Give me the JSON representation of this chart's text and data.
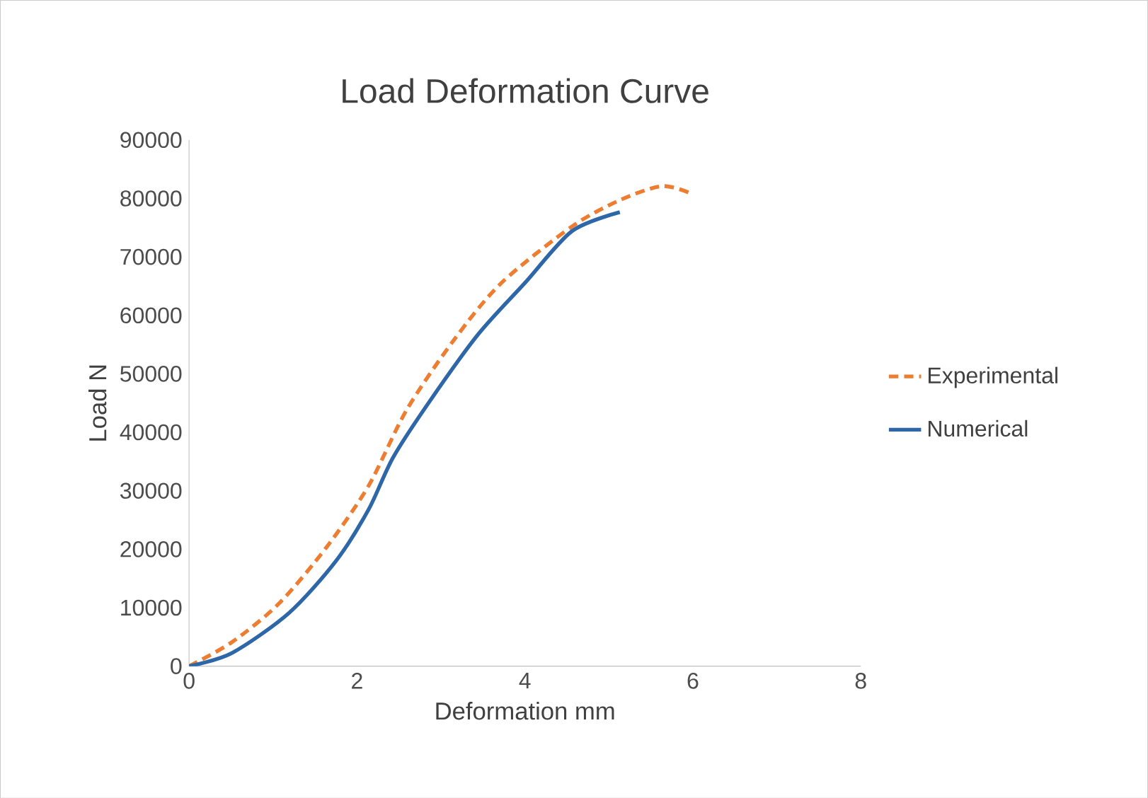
{
  "chart_data": {
    "type": "line",
    "title": "Load Deformation Curve",
    "xlabel": "Deformation mm",
    "ylabel": "Load N",
    "xlim": [
      0,
      8
    ],
    "xticks": [
      0,
      2,
      4,
      6,
      8
    ],
    "ylim": [
      0,
      90000
    ],
    "yticks": [
      0,
      10000,
      20000,
      30000,
      40000,
      50000,
      60000,
      70000,
      80000,
      90000
    ],
    "legend": "right",
    "marker": "none",
    "series": [
      {
        "name": "Experimental",
        "color": "#ed7d31",
        "line_style": "dashed",
        "x": [
          0,
          0.51,
          1.07,
          1.64,
          2.14,
          2.59,
          3.16,
          3.72,
          4.56,
          5.13,
          5.63,
          5.97
        ],
        "values": [
          0,
          4100,
          10700,
          20400,
          30900,
          43800,
          55900,
          65550,
          75200,
          79700,
          82100,
          80900
        ]
      },
      {
        "name": "Numerical",
        "color": "#2e67a8",
        "line_style": "solid",
        "x": [
          0,
          0.51,
          1.19,
          1.75,
          2.14,
          2.43,
          2.87,
          3.44,
          4.0,
          4.56,
          5.13
        ],
        "values": [
          0,
          2250,
          9100,
          18000,
          26850,
          35700,
          45400,
          56700,
          65550,
          74400,
          77650
        ]
      }
    ]
  }
}
